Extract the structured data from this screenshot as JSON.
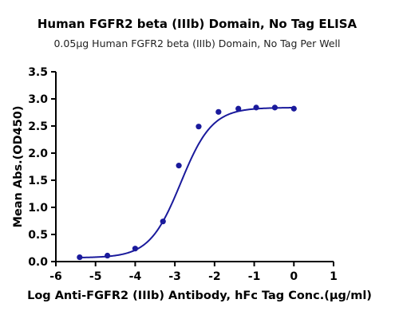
{
  "chart_data": {
    "type": "scatter",
    "title": "Human FGFR2 beta (IIIb) Domain, No Tag ELISA",
    "subtitle": "0.05μg Human FGFR2 beta (IIIb) Domain, No Tag Per Well",
    "xlabel": "Log Anti-FGFR2 (IIIb) Antibody, hFc Tag Conc.(μg/ml)",
    "ylabel": "Mean Abs.(OD450)",
    "xlim": [
      -6,
      1
    ],
    "ylim": [
      0,
      3.5
    ],
    "xticks": [
      "-6",
      "-5",
      "-4",
      "-3",
      "-2",
      "-1",
      "0",
      "1"
    ],
    "yticks": [
      "0.0",
      "0.5",
      "1.0",
      "1.5",
      "2.0",
      "2.5",
      "3.0",
      "3.5"
    ],
    "color": "#1a1a9c",
    "grid": false,
    "series": [
      {
        "x": [
          -5.4,
          -4.7,
          -4.0,
          -3.3,
          -2.9,
          -2.4,
          -1.9,
          -1.4,
          -0.95,
          -0.48,
          0.0
        ],
        "y": [
          0.08,
          0.11,
          0.24,
          0.74,
          1.77,
          2.49,
          2.76,
          2.82,
          2.84,
          2.84,
          2.82
        ]
      }
    ],
    "fit": {
      "model": "4PL sigmoid",
      "bottom": 0.07,
      "top": 2.84,
      "logEC50": -2.85,
      "hill": 1.1
    }
  }
}
